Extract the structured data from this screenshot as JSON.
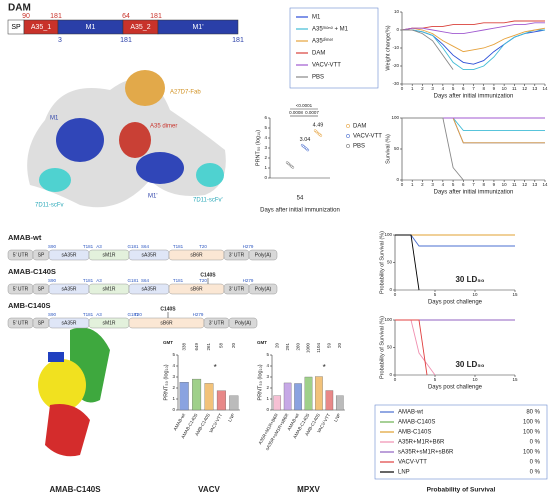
{
  "title": "DAM",
  "domain_map": {
    "segments": [
      {
        "label": "SP",
        "color": "#ffffff"
      },
      {
        "label": "A35_1",
        "color": "#c8322a"
      },
      {
        "label": "M1",
        "color": "#2a3fa8"
      },
      {
        "label": "A35_2",
        "color": "#c8322a"
      },
      {
        "label": "M1'",
        "color": "#2a3fa8"
      }
    ],
    "top_numbers": [
      90,
      181,
      64,
      181
    ],
    "bottom_numbers": [
      3,
      181,
      181
    ]
  },
  "structure_labels": [
    "A27D7-Fab",
    "M1",
    "A35 dimer",
    "7D11-scFv",
    "M1'",
    "7D11-scFv'"
  ],
  "legend_top": [
    {
      "name": "M1",
      "color": "#2b4ed8"
    },
    {
      "name": "A35ᵐᵒⁿᵒ + M1",
      "color": "#41bcd6"
    },
    {
      "name": "A35ᵈⁱᵐᵉʳ",
      "color": "#e6a23c"
    },
    {
      "name": "DAM",
      "color": "#d9413a"
    },
    {
      "name": "VACV-VTT",
      "color": "#a05ad0"
    },
    {
      "name": "PBS",
      "color": "#888888"
    }
  ],
  "weight_chart": {
    "ylabel": "Weight change(%)",
    "xlabel": "Days after initial immunization",
    "x": [
      0,
      1,
      2,
      3,
      4,
      5,
      6,
      7,
      8,
      9,
      10,
      11,
      12,
      13,
      14
    ],
    "xlim": [
      0,
      14
    ],
    "xticks": [
      0,
      1,
      2,
      3,
      4,
      5,
      6,
      7,
      8,
      9,
      10,
      11,
      12,
      13,
      14
    ],
    "ylim": [
      -30,
      10
    ],
    "yticks": [
      10,
      0,
      -10,
      -20,
      -30
    ],
    "series": [
      {
        "color": "#2b4ed8",
        "values": [
          0,
          0,
          -1,
          -3,
          -8,
          -14,
          -18,
          -19,
          -17,
          -12,
          -8,
          -4,
          -2,
          -1,
          0
        ]
      },
      {
        "color": "#41bcd6",
        "values": [
          0,
          0,
          -1,
          -3,
          -10,
          -18,
          -22,
          -22,
          -20,
          -15,
          -8,
          -4,
          -2,
          0,
          0
        ]
      },
      {
        "color": "#e6a23c",
        "values": [
          0,
          1,
          0,
          -2,
          -6,
          -9,
          -12,
          -11,
          -10,
          -8,
          -5,
          -3,
          -1,
          0,
          1
        ]
      },
      {
        "color": "#d9413a",
        "values": [
          0,
          1,
          1,
          2,
          2,
          3,
          3,
          3,
          4,
          4,
          4,
          5,
          5,
          5,
          5
        ]
      },
      {
        "color": "#a05ad0",
        "values": [
          0,
          1,
          1,
          0,
          -1,
          -2,
          -2,
          -1,
          0,
          1,
          2,
          3,
          3,
          4,
          4
        ]
      },
      {
        "color": "#888888",
        "values": [
          0,
          0,
          -2,
          -6,
          -14,
          -22,
          null,
          null,
          null,
          null,
          null,
          null,
          null,
          null,
          null
        ]
      }
    ]
  },
  "survival_chart": {
    "ylabel": "Survival (%)",
    "xlabel": "Days after initial immunization",
    "x": [
      0,
      1,
      2,
      3,
      4,
      5,
      6,
      7,
      8,
      9,
      10,
      11,
      12,
      13,
      14
    ],
    "xlim": [
      0,
      14
    ],
    "xticks": [
      0,
      1,
      2,
      3,
      4,
      5,
      6,
      7,
      8,
      9,
      10,
      11,
      12,
      13,
      14
    ],
    "ylim": [
      0,
      100
    ],
    "yticks": [
      0,
      50,
      100
    ],
    "series": [
      {
        "color": "#2b4ed8",
        "values": [
          100,
          100,
          100,
          100,
          100,
          100,
          60,
          60,
          60,
          60,
          60,
          60,
          60,
          60,
          60
        ]
      },
      {
        "color": "#41bcd6",
        "values": [
          100,
          100,
          100,
          100,
          100,
          100,
          80,
          80,
          80,
          80,
          80,
          80,
          80,
          80,
          80
        ]
      },
      {
        "color": "#e6a23c",
        "values": [
          100,
          100,
          100,
          100,
          100,
          100,
          60,
          60,
          60,
          60,
          60,
          60,
          60,
          60,
          60
        ]
      },
      {
        "color": "#d9413a",
        "values": [
          100,
          100,
          100,
          100,
          100,
          100,
          100,
          100,
          100,
          100,
          100,
          100,
          100,
          100,
          100
        ]
      },
      {
        "color": "#a05ad0",
        "values": [
          100,
          100,
          100,
          100,
          100,
          100,
          100,
          100,
          100,
          100,
          100,
          100,
          100,
          100,
          100
        ]
      },
      {
        "color": "#888888",
        "values": [
          100,
          100,
          100,
          100,
          100,
          20,
          0,
          null,
          null,
          null,
          null,
          null,
          null,
          null,
          null
        ]
      }
    ]
  },
  "prnt_chart": {
    "ylabel": "PRNT₅₀ (log₁₀)",
    "xlabel": "Days after initial immunization",
    "x_tick": "54",
    "ylim": [
      0,
      6
    ],
    "yticks": [
      0,
      1,
      2,
      3,
      4,
      5,
      6
    ],
    "p_values": [
      "<0.0001",
      "0.0008",
      "0.0007"
    ],
    "series": [
      {
        "name": "DAM",
        "color": "#e6a23c",
        "values": [
          4.49
        ],
        "value_labels": [
          "4.49"
        ]
      },
      {
        "name": "VACV-VTT",
        "color": "#4a6fd0",
        "values": [
          3.04
        ],
        "value_labels": [
          "3.04"
        ]
      },
      {
        "name": "PBS",
        "color": "#777777",
        "values": [
          1.3
        ]
      }
    ]
  },
  "constructs": [
    {
      "name": "AMAB-wt",
      "segments": [
        {
          "label": "5' UTR",
          "color": "#d8d8d8"
        },
        {
          "label": "SP",
          "color": "#d8d8d8"
        },
        {
          "label": "sA35R",
          "color": "#dfe6f7"
        },
        {
          "label": "sM1R",
          "color": "#e3f1dc"
        },
        {
          "label": "sA35R",
          "color": "#dfe6f7"
        },
        {
          "label": "sB6R",
          "color": "#fbe7d4"
        },
        {
          "label": "3' UTR",
          "color": "#d8d8d8"
        },
        {
          "label": "Poly(A)",
          "color": "#d8d8d8"
        }
      ],
      "sites": [
        "S90",
        "T181",
        "A3",
        "G181",
        "S64",
        "T181",
        "T20",
        "H279"
      ]
    },
    {
      "name": "AMAB-C140S",
      "mutation": "C140S",
      "segments": [
        {
          "label": "5' UTR",
          "color": "#d8d8d8"
        },
        {
          "label": "SP",
          "color": "#d8d8d8"
        },
        {
          "label": "sA35R",
          "color": "#dfe6f7"
        },
        {
          "label": "sM1R",
          "color": "#e3f1dc"
        },
        {
          "label": "sA35R",
          "color": "#dfe6f7"
        },
        {
          "label": "sB6R",
          "color": "#fbe7d4"
        },
        {
          "label": "3' UTR",
          "color": "#d8d8d8"
        },
        {
          "label": "Poly(A)",
          "color": "#d8d8d8"
        }
      ],
      "sites": [
        "S90",
        "T181",
        "A3",
        "G181",
        "S64",
        "T181",
        "T20",
        "H279"
      ]
    },
    {
      "name": "AMB-C140S",
      "mutation": "C140S",
      "segments": [
        {
          "label": "5' UTR",
          "color": "#d8d8d8"
        },
        {
          "label": "SP",
          "color": "#d8d8d8"
        },
        {
          "label": "sA35R",
          "color": "#dfe6f7"
        },
        {
          "label": "sM1R",
          "color": "#e3f1dc"
        },
        {
          "label": "sB6R",
          "color": "#fbe7d4"
        },
        {
          "label": "3' UTR",
          "color": "#d8d8d8"
        },
        {
          "label": "Poly(A)",
          "color": "#d8d8d8"
        }
      ],
      "sites": [
        "S90",
        "T181",
        "A3",
        "G181",
        "T20",
        "H279"
      ]
    }
  ],
  "challenge_charts": [
    {
      "ylabel": "Probability of Survival (%)",
      "xlabel": "Days post challenge",
      "annotation": "30 LD₅₀",
      "x": [
        0,
        1,
        2,
        3,
        4,
        5,
        6,
        7,
        8,
        9,
        10,
        11,
        12,
        13,
        14,
        15
      ],
      "xlim": [
        0,
        15
      ],
      "xticks": [
        0,
        5,
        10,
        15
      ],
      "ylim": [
        0,
        100
      ],
      "yticks": [
        0,
        50,
        100
      ],
      "series": [
        {
          "color": "#6cb050",
          "values": [
            100,
            100,
            100,
            100,
            100,
            100,
            100,
            100,
            100,
            100,
            100,
            100,
            100,
            100,
            100,
            100
          ]
        },
        {
          "color": "#e0a030",
          "values": [
            100,
            100,
            100,
            100,
            100,
            100,
            100,
            100,
            100,
            100,
            100,
            100,
            100,
            100,
            100,
            100
          ]
        },
        {
          "color": "#4a6fd0",
          "values": [
            100,
            100,
            100,
            80,
            80,
            80,
            80,
            80,
            80,
            80,
            80,
            80,
            80,
            80,
            80,
            80
          ]
        },
        {
          "color": "#000000",
          "values": [
            100,
            100,
            100,
            0,
            null,
            null,
            null,
            null,
            null,
            null,
            null,
            null,
            null,
            null,
            null,
            null
          ]
        }
      ]
    },
    {
      "ylabel": "Probability of Survival (%)",
      "xlabel": "Days post challenge",
      "annotation": "30 LD₅₀",
      "x": [
        0,
        1,
        2,
        3,
        4,
        5,
        6,
        7,
        8,
        9,
        10,
        11,
        12,
        13,
        14,
        15
      ],
      "xlim": [
        0,
        15
      ],
      "xticks": [
        0,
        5,
        10,
        15
      ],
      "ylim": [
        0,
        100
      ],
      "yticks": [
        0,
        50,
        100
      ],
      "series": [
        {
          "color": "#9060c0",
          "values": [
            100,
            100,
            100,
            100,
            100,
            100,
            100,
            100,
            100,
            100,
            100,
            100,
            100,
            100,
            100,
            100
          ]
        },
        {
          "color": "#f090b0",
          "values": [
            100,
            100,
            100,
            40,
            20,
            0,
            null,
            null,
            null,
            null,
            null,
            null,
            null,
            null,
            null,
            null
          ]
        },
        {
          "color": "#e04040",
          "values": [
            100,
            100,
            100,
            100,
            0,
            null,
            null,
            null,
            null,
            null,
            null,
            null,
            null,
            null,
            null,
            null
          ]
        }
      ]
    }
  ],
  "bar_charts": [
    {
      "title": "VACV",
      "ylabel": "PRNT₅₀ (log₁₀)",
      "gmt_label": "GMT",
      "significance": "*",
      "categories": [
        "AMAB-wt",
        "AMAB-C140S",
        "AMB-C140S",
        "VACV-VTT",
        "LNP"
      ],
      "values": [
        2.53,
        2.81,
        2.42,
        1.76,
        1.3
      ],
      "value_labels": [
        "338",
        "649",
        "261",
        "58",
        "20"
      ],
      "colors": [
        "#8aa3e0",
        "#9fd08a",
        "#f2c27a",
        "#e88888",
        "#bbbbbb"
      ],
      "ylim": [
        0,
        5
      ],
      "yticks": [
        0,
        1,
        2,
        3,
        4,
        5
      ]
    },
    {
      "title": "MPXV",
      "ylabel": "PRNT₅₀ (log₁₀)",
      "gmt_label": "GMT",
      "significance": "*",
      "categories": [
        "A35R+M1R+B6R",
        "sA35R+sM1R+sB6R",
        "AMAB-wt",
        "AMAB-C140S",
        "AMB-C140S",
        "VACV-VTT",
        "LNP"
      ],
      "values": [
        1.3,
        2.46,
        2.41,
        3.0,
        3.04,
        1.77,
        1.3
      ],
      "value_labels": [
        "20",
        "291",
        "260",
        "1000",
        "1104",
        "59",
        "20"
      ],
      "colors": [
        "#f6c0d4",
        "#c6a8e6",
        "#8aa3e0",
        "#9fd08a",
        "#f2c27a",
        "#e88888",
        "#bbbbbb"
      ],
      "ylim": [
        0,
        5
      ],
      "yticks": [
        0,
        1,
        2,
        3,
        4,
        5
      ]
    }
  ],
  "legend_bottom": {
    "title": "Probability of Survival",
    "items": [
      {
        "name": "AMAB-wt",
        "color": "#4a6fd0",
        "value": "80 %"
      },
      {
        "name": "AMAB-C140S",
        "color": "#6cb050",
        "value": "100 %"
      },
      {
        "name": "AMB-C140S",
        "color": "#e0a030",
        "value": "100 %"
      },
      {
        "name": "A35R+M1R+B6R",
        "color": "#f090b0",
        "value": "0 %"
      },
      {
        "name": "sA35R+sM1R+sB6R",
        "color": "#9060c0",
        "value": "100 %"
      },
      {
        "name": "VACV-VTT",
        "color": "#e04040",
        "value": "0 %"
      },
      {
        "name": "LNP",
        "color": "#000000",
        "value": "0 %"
      }
    ]
  },
  "bottom_structure_label": "AMAB-C140S"
}
